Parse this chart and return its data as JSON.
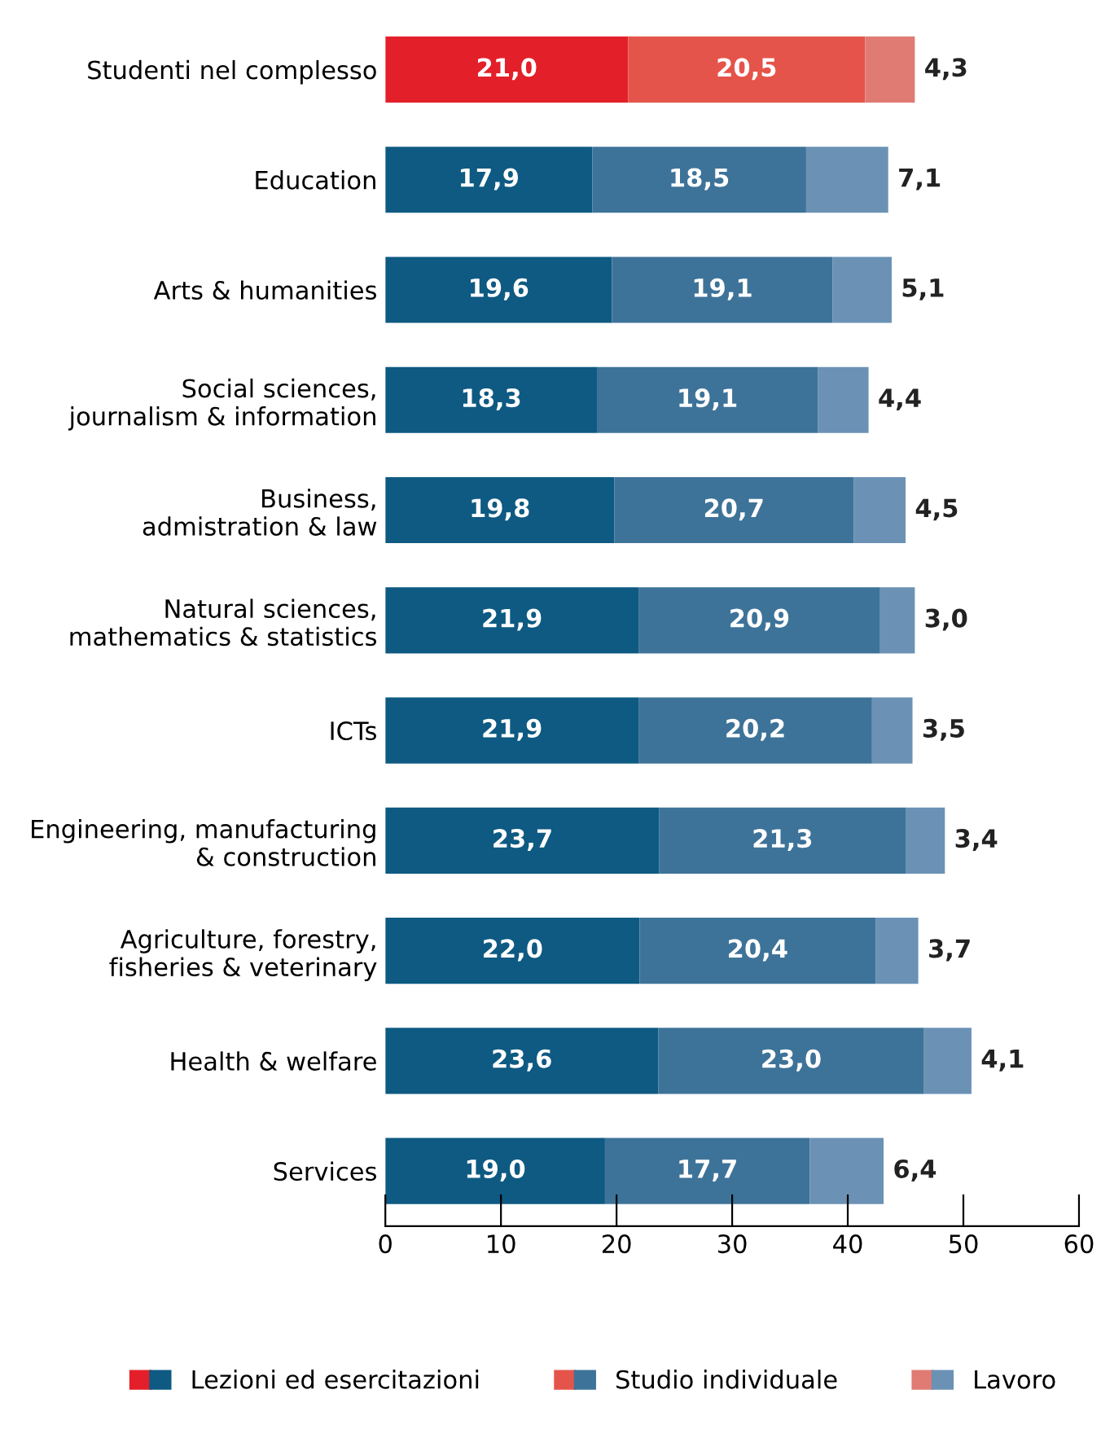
{
  "chart_data": {
    "type": "bar",
    "orientation": "horizontal",
    "stacked": true,
    "categories": [
      "Studenti nel complesso",
      "Education",
      "Arts & humanities",
      "Social sciences,\njournalism & information",
      "Business,\nadmistration & law",
      "Natural sciences,\nmathematics & statistics",
      "ICTs",
      "Engineering, manufacturing\n& construction",
      "Agriculture, forestry,\nfisheries & veterinary",
      "Health & welfare",
      "Services"
    ],
    "series": [
      {
        "name": "Lezioni ed esercitazioni",
        "color": "#0e5a82",
        "colors": [
          "#e3202a",
          "#0e5a82",
          "#0e5a82",
          "#0e5a82",
          "#0e5a82",
          "#0e5a82",
          "#0e5a82",
          "#0e5a82",
          "#0e5a82",
          "#0e5a82",
          "#0e5a82"
        ],
        "values": [
          21.0,
          17.9,
          19.6,
          18.3,
          19.8,
          21.9,
          21.9,
          23.7,
          22.0,
          23.6,
          19.0
        ],
        "value_labels": [
          "21,0",
          "17,9",
          "19,6",
          "18,3",
          "19,8",
          "21,9",
          "21,9",
          "23,7",
          "22,0",
          "23,6",
          "19,0"
        ]
      },
      {
        "name": "Studio individuale",
        "color": "#3e7399",
        "colors": [
          "#e5544a",
          "#3e7399",
          "#3e7399",
          "#3e7399",
          "#3e7399",
          "#3e7399",
          "#3e7399",
          "#3e7399",
          "#3e7399",
          "#3e7399",
          "#3e7399"
        ],
        "values": [
          20.5,
          18.5,
          19.1,
          19.1,
          20.7,
          20.9,
          20.2,
          21.3,
          20.4,
          23.0,
          17.7
        ],
        "value_labels": [
          "20,5",
          "18,5",
          "19,1",
          "19,1",
          "20,7",
          "20,9",
          "20,2",
          "21,3",
          "20,4",
          "23,0",
          "17,7"
        ]
      },
      {
        "name": "Lavoro",
        "color": "#6b92b5",
        "colors": [
          "#e07b74",
          "#6b92b5",
          "#6b92b5",
          "#6b92b5",
          "#6b92b5",
          "#6b92b5",
          "#6b92b5",
          "#6b92b5",
          "#6b92b5",
          "#6b92b5",
          "#6b92b5"
        ],
        "values": [
          4.3,
          7.1,
          5.1,
          4.4,
          4.5,
          3.0,
          3.5,
          3.4,
          3.7,
          4.1,
          6.4
        ],
        "value_labels": [
          "4,3",
          "7,1",
          "5,1",
          "4,4",
          "4,5",
          "3,0",
          "3,5",
          "3,4",
          "3,7",
          "4,1",
          "6,4"
        ]
      }
    ],
    "xlim": [
      0,
      60
    ],
    "xticks": [
      0,
      10,
      20,
      30,
      40,
      50,
      60
    ],
    "grid": false,
    "legend": "bottom"
  }
}
